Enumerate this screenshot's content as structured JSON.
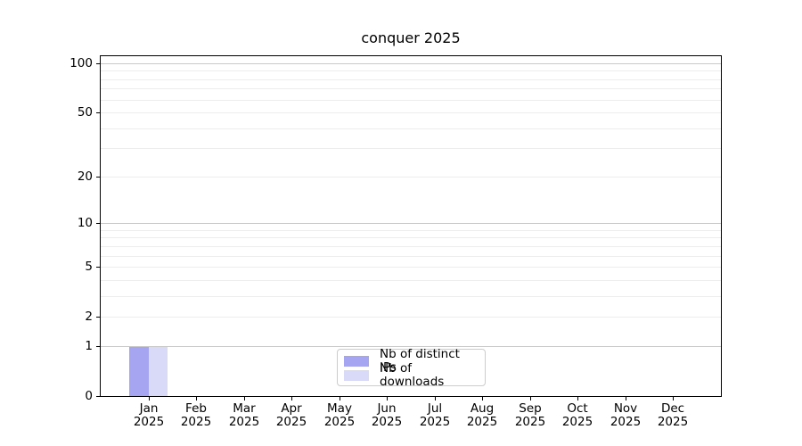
{
  "chart_data": {
    "type": "bar",
    "title": "conquer 2025",
    "categories": [
      "Jan 2025",
      "Feb 2025",
      "Mar 2025",
      "Apr 2025",
      "May 2025",
      "Jun 2025",
      "Jul 2025",
      "Aug 2025",
      "Sep 2025",
      "Oct 2025",
      "Nov 2025",
      "Dec 2025"
    ],
    "x_tick_months": [
      "Jan",
      "Feb",
      "Mar",
      "Apr",
      "May",
      "Jun",
      "Jul",
      "Aug",
      "Sep",
      "Oct",
      "Nov",
      "Dec"
    ],
    "x_tick_year": "2025",
    "series": [
      {
        "name": "Nb of distinct IPs",
        "color": "#a5a5f2",
        "values": [
          1,
          0,
          0,
          0,
          0,
          0,
          0,
          0,
          0,
          0,
          0,
          0
        ]
      },
      {
        "name": "Nb of downloads",
        "color": "#d9d9f8",
        "values": [
          1,
          0,
          0,
          0,
          0,
          0,
          0,
          0,
          0,
          0,
          0,
          0
        ]
      }
    ],
    "yscale": "log1p",
    "ylim": [
      0,
      110.5
    ],
    "y_major_ticks": [
      0,
      1,
      2,
      5,
      10,
      20,
      50,
      100
    ],
    "y_minor_ticks": [
      3,
      4,
      6,
      7,
      8,
      9,
      30,
      40,
      60,
      70,
      80,
      90
    ],
    "decade_gridlines": [
      1,
      10,
      100
    ],
    "grid": {
      "decade_color": "#c9c9c9",
      "minor_color": "#ededed",
      "grid_over_bars": true
    },
    "legend": {
      "position": "lower center",
      "border_color": "#cccccc"
    },
    "axis_color": "#000000",
    "background_color": "#ffffff"
  }
}
